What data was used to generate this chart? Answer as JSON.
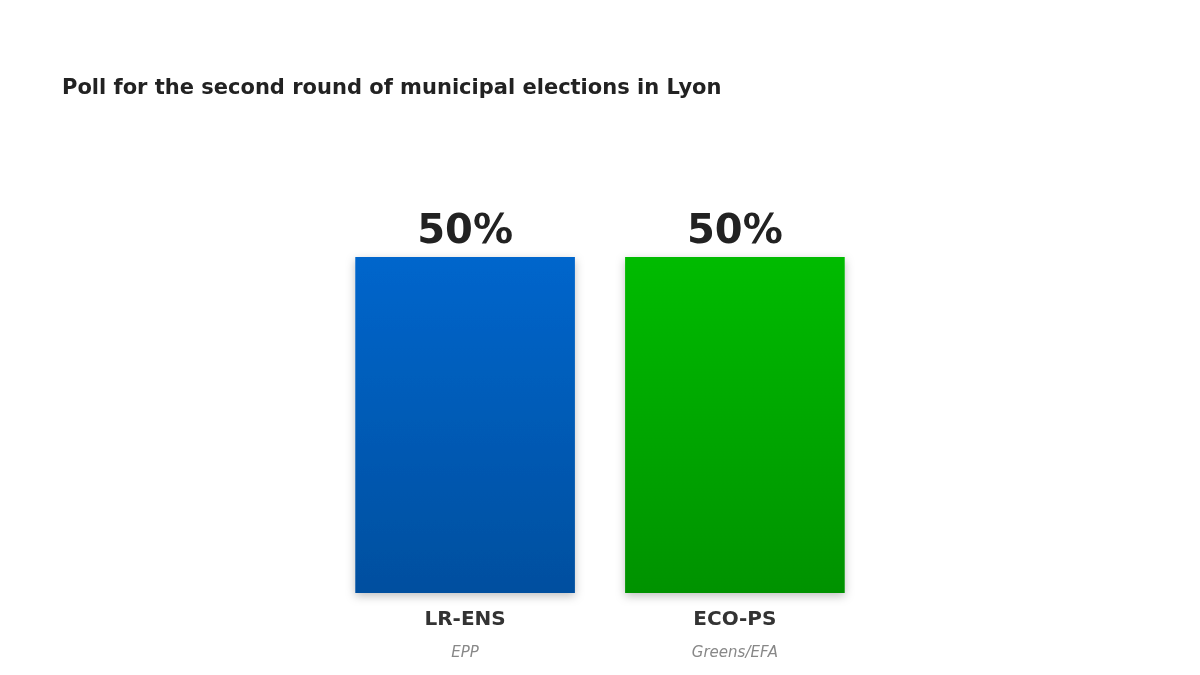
{
  "chart_data": {
    "type": "bar",
    "title": "Poll for the second round of municipal elections in Lyon",
    "categories": [
      "LR-ENS",
      "ECO-PS"
    ],
    "values": [
      50,
      50
    ],
    "value_labels": [
      "50%",
      "50%"
    ],
    "colors": [
      "#0066cc",
      "#00bb00"
    ],
    "annotations": [
      "EPP",
      "Greens/EFA"
    ]
  }
}
